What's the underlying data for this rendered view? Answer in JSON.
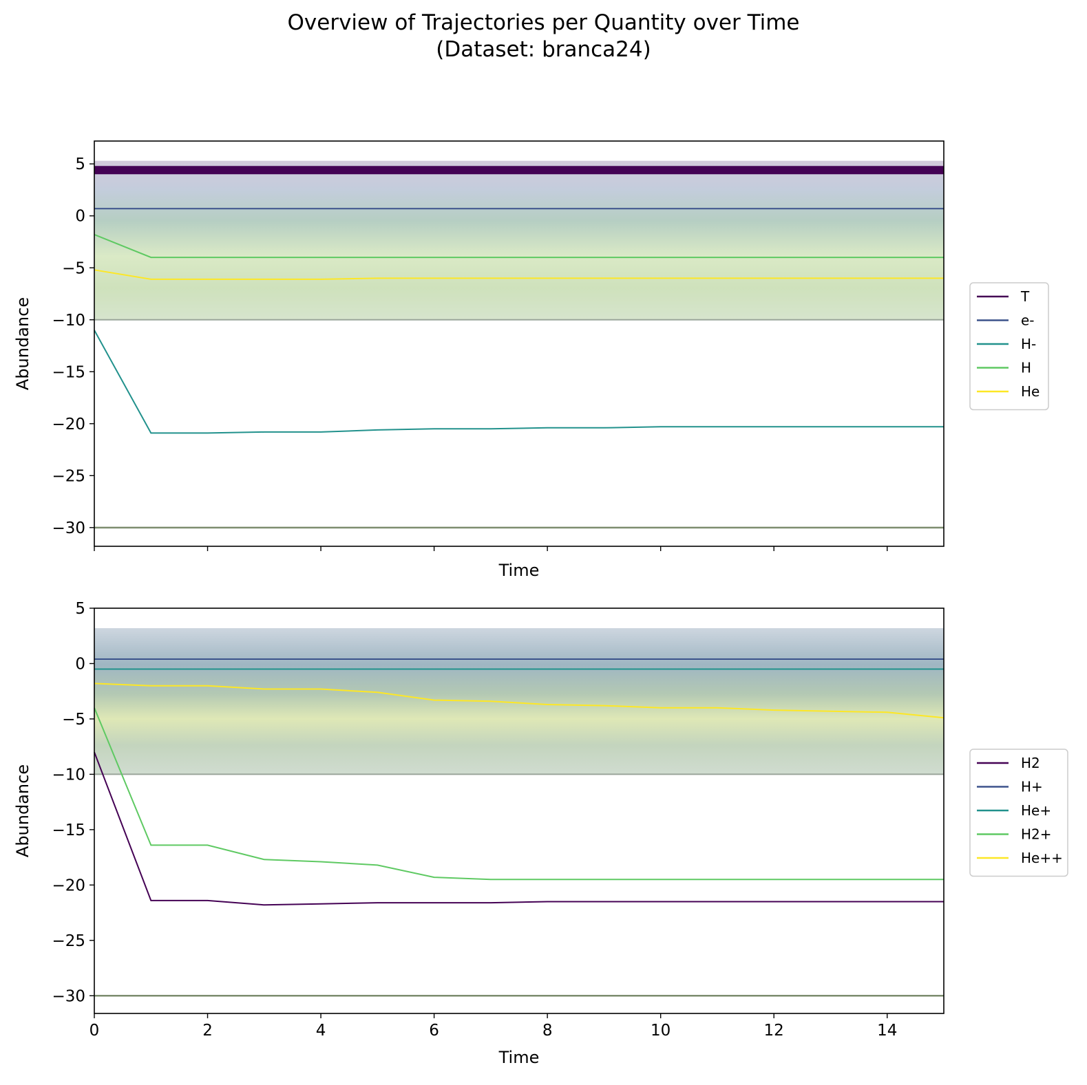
{
  "figure": {
    "title_line1": "Overview of Trajectories per Quantity over Time",
    "title_line2": "(Dataset: branca24)"
  },
  "chart_data": [
    {
      "type": "line",
      "xlabel": "Time",
      "ylabel": "Abundance",
      "xlim": [
        0,
        15
      ],
      "ylim": [
        -31.8,
        7.2
      ],
      "xticks": [
        0,
        2,
        4,
        6,
        8,
        10,
        12,
        14
      ],
      "yticks": [
        5,
        0,
        -5,
        -10,
        -15,
        -20,
        -25,
        -30
      ],
      "x_tick_labels_shown": false,
      "legend": "center-right-outside",
      "background_band": {
        "from": -10,
        "to": 5.3
      },
      "series": [
        {
          "name": "T",
          "color": "#440154",
          "x": [
            0,
            1,
            2,
            3,
            4,
            5,
            6,
            7,
            8,
            9,
            10,
            11,
            12,
            13,
            14,
            15
          ],
          "values": [
            4.4,
            4.4,
            4.4,
            4.4,
            4.4,
            4.4,
            4.4,
            4.4,
            4.4,
            4.4,
            4.4,
            4.4,
            4.4,
            4.4,
            4.4,
            4.4
          ]
        },
        {
          "name": "e-",
          "color": "#3b528b",
          "x": [
            0,
            1,
            2,
            3,
            4,
            5,
            6,
            7,
            8,
            9,
            10,
            11,
            12,
            13,
            14,
            15
          ],
          "values": [
            0.7,
            0.7,
            0.7,
            0.7,
            0.7,
            0.7,
            0.7,
            0.7,
            0.7,
            0.7,
            0.7,
            0.7,
            0.7,
            0.7,
            0.7,
            0.7
          ]
        },
        {
          "name": "H-",
          "color": "#21918c",
          "x": [
            0,
            1,
            2,
            3,
            4,
            5,
            6,
            7,
            8,
            9,
            10,
            11,
            12,
            13,
            14,
            15
          ],
          "values": [
            -11,
            -20.9,
            -20.9,
            -20.8,
            -20.8,
            -20.6,
            -20.5,
            -20.5,
            -20.4,
            -20.4,
            -20.3,
            -20.3,
            -20.3,
            -20.3,
            -20.3,
            -20.3
          ]
        },
        {
          "name": "H",
          "color": "#5ec962",
          "x": [
            0,
            1,
            2,
            3,
            4,
            5,
            6,
            7,
            8,
            9,
            10,
            11,
            12,
            13,
            14,
            15
          ],
          "values": [
            -1.8,
            -4,
            -4,
            -4,
            -4,
            -4,
            -4,
            -4,
            -4,
            -4,
            -4,
            -4,
            -4,
            -4,
            -4,
            -4
          ]
        },
        {
          "name": "He",
          "color": "#fde725",
          "x": [
            0,
            1,
            2,
            3,
            4,
            5,
            6,
            7,
            8,
            9,
            10,
            11,
            12,
            13,
            14,
            15
          ],
          "values": [
            -5.2,
            -6.1,
            -6.1,
            -6.1,
            -6.1,
            -6,
            -6,
            -6,
            -6,
            -6,
            -6,
            -6,
            -6,
            -6,
            -6,
            -6
          ]
        }
      ]
    },
    {
      "type": "line",
      "xlabel": "Time",
      "ylabel": "Abundance",
      "xlim": [
        0,
        15
      ],
      "ylim": [
        -31.6,
        5
      ],
      "xticks": [
        0,
        2,
        4,
        6,
        8,
        10,
        12,
        14
      ],
      "yticks": [
        5,
        0,
        -5,
        -10,
        -15,
        -20,
        -25,
        -30
      ],
      "x_tick_labels_shown": true,
      "legend": "center-right-outside",
      "background_band": {
        "from": -10,
        "to": 3.2
      },
      "series": [
        {
          "name": "H2",
          "color": "#440154",
          "x": [
            0,
            1,
            2,
            3,
            4,
            5,
            6,
            7,
            8,
            9,
            10,
            11,
            12,
            13,
            14,
            15
          ],
          "values": [
            -8,
            -21.4,
            -21.4,
            -21.8,
            -21.7,
            -21.6,
            -21.6,
            -21.6,
            -21.5,
            -21.5,
            -21.5,
            -21.5,
            -21.5,
            -21.5,
            -21.5,
            -21.5
          ]
        },
        {
          "name": "H+",
          "color": "#3b528b",
          "x": [
            0,
            1,
            2,
            3,
            4,
            5,
            6,
            7,
            8,
            9,
            10,
            11,
            12,
            13,
            14,
            15
          ],
          "values": [
            0.4,
            0.4,
            0.4,
            0.4,
            0.4,
            0.4,
            0.4,
            0.4,
            0.4,
            0.4,
            0.4,
            0.4,
            0.4,
            0.4,
            0.4,
            0.4
          ]
        },
        {
          "name": "He+",
          "color": "#21918c",
          "x": [
            0,
            1,
            2,
            3,
            4,
            5,
            6,
            7,
            8,
            9,
            10,
            11,
            12,
            13,
            14,
            15
          ],
          "values": [
            -0.5,
            -0.5,
            -0.5,
            -0.5,
            -0.5,
            -0.5,
            -0.5,
            -0.5,
            -0.5,
            -0.5,
            -0.5,
            -0.5,
            -0.5,
            -0.5,
            -0.5,
            -0.5
          ]
        },
        {
          "name": "H2+",
          "color": "#5ec962",
          "x": [
            0,
            1,
            2,
            3,
            4,
            5,
            6,
            7,
            8,
            9,
            10,
            11,
            12,
            13,
            14,
            15
          ],
          "values": [
            -4,
            -16.4,
            -16.4,
            -17.7,
            -17.9,
            -18.2,
            -19.3,
            -19.5,
            -19.5,
            -19.5,
            -19.5,
            -19.5,
            -19.5,
            -19.5,
            -19.5,
            -19.5
          ]
        },
        {
          "name": "He++",
          "color": "#fde725",
          "x": [
            0,
            1,
            2,
            3,
            4,
            5,
            6,
            7,
            8,
            9,
            10,
            11,
            12,
            13,
            14,
            15
          ],
          "values": [
            -1.8,
            -2,
            -2,
            -2.3,
            -2.3,
            -2.6,
            -3.3,
            -3.4,
            -3.7,
            -3.8,
            -4,
            -4,
            -4.2,
            -4.3,
            -4.4,
            -4.9
          ]
        }
      ]
    }
  ]
}
